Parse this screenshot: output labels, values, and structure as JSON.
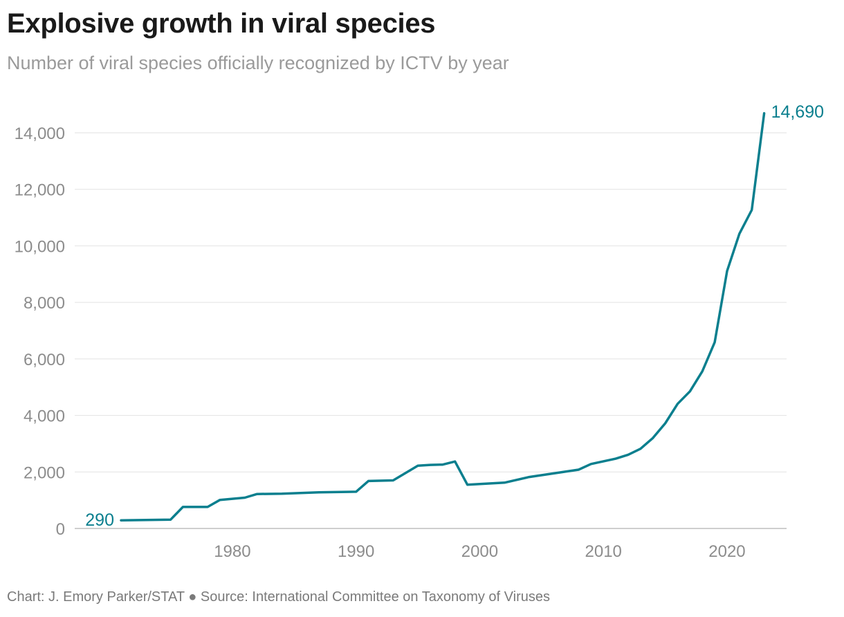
{
  "chart_data": {
    "type": "line",
    "title": "Explosive growth in viral species",
    "subtitle": "Number of viral species officially recognized by ICTV by year",
    "xlabel": "",
    "ylabel": "",
    "xlim": [
      1967,
      2024
    ],
    "ylim": [
      0,
      15000
    ],
    "yticks": [
      0,
      2000,
      4000,
      6000,
      8000,
      10000,
      12000,
      14000
    ],
    "ytick_labels": [
      "0",
      "2,000",
      "4,000",
      "6,000",
      "8,000",
      "10,000",
      "12,000",
      "14,000"
    ],
    "xticks": [
      1980,
      1990,
      2000,
      2010,
      2020
    ],
    "xtick_labels": [
      "1980",
      "1990",
      "2000",
      "2010",
      "2020"
    ],
    "grid": "horizontal",
    "line_color": "#0b7f8e",
    "x": [
      1971,
      1975,
      1976,
      1978,
      1979,
      1981,
      1982,
      1984,
      1987,
      1990,
      1991,
      1993,
      1995,
      1996,
      1997,
      1998,
      1999,
      2002,
      2004,
      2008,
      2009,
      2011,
      2012,
      2013,
      2014,
      2015,
      2016,
      2017,
      2018,
      2019,
      2020,
      2021,
      2022,
      2023
    ],
    "y": [
      290,
      310,
      760,
      760,
      1010,
      1090,
      1220,
      1230,
      1280,
      1300,
      1680,
      1700,
      2220,
      2250,
      2260,
      2370,
      1550,
      1620,
      1820,
      2080,
      2280,
      2470,
      2610,
      2820,
      3200,
      3720,
      4410,
      4850,
      5560,
      6590,
      9110,
      10430,
      11270,
      14690
    ],
    "start_label": "290",
    "end_label": "14,690"
  },
  "footer": "Chart: J. Emory Parker/STAT ● Source: International Committee on Taxonomy of Viruses"
}
